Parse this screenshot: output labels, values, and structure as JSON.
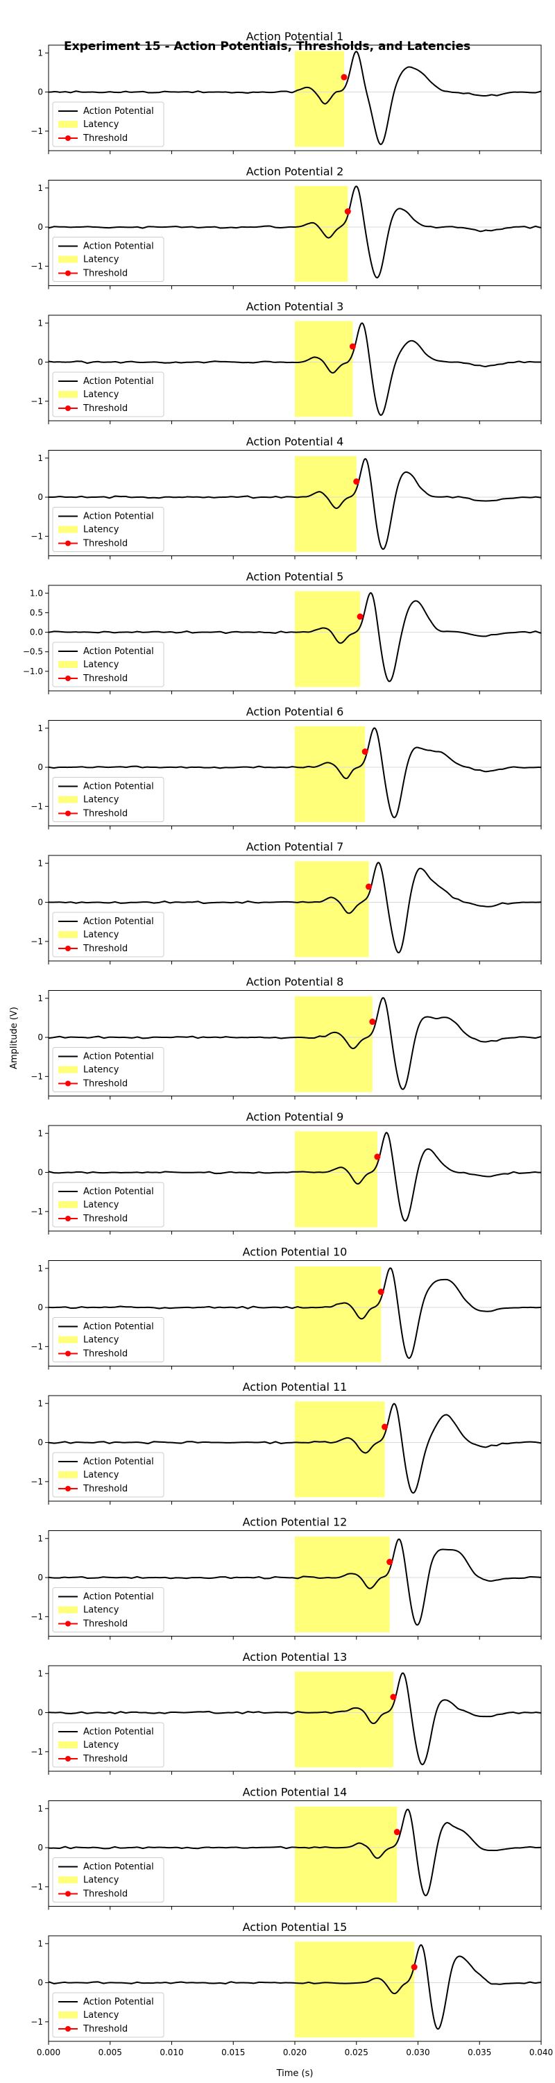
{
  "figure": {
    "suptitle": "Experiment 15 - Action Potentials, Thresholds, and Latencies",
    "xlabel": "Time (s)",
    "ylabel": "Amplitude (V)"
  },
  "legend": {
    "action_potential": "Action Potential",
    "latency": "Latency",
    "threshold": "Threshold"
  },
  "colors": {
    "signal": "#000000",
    "latency_fill": "#ffff7a",
    "threshold_marker": "#ff0000"
  },
  "chart_data": {
    "type": "line",
    "layout": "15 vertically stacked subplots sharing the x axis",
    "x_range": [
      0.0,
      0.04
    ],
    "x_ticks": [
      "0.000",
      "0.005",
      "0.010",
      "0.015",
      "0.020",
      "0.025",
      "0.030",
      "0.035",
      "0.040"
    ],
    "y_range": [
      -1.5,
      1.2
    ],
    "y_ticks_default": [
      "1",
      "0",
      "−1"
    ],
    "y_ticks_subplot_5": [
      "1.0",
      "0.5",
      "0.0",
      "−0.5",
      "−1.0"
    ],
    "latency_start": 0.02,
    "subplots": [
      {
        "title": "Action Potential 1",
        "latency_end": 0.024,
        "threshold": [
          0.024,
          0.38
        ],
        "peak": [
          0.025,
          1.0
        ],
        "trough": [
          0.027,
          -1.35
        ],
        "after": [
          [
            0.029,
            0.5
          ],
          [
            0.0303,
            0.35
          ]
        ]
      },
      {
        "title": "Action Potential 2",
        "latency_end": 0.0243,
        "threshold": [
          0.0243,
          0.4
        ],
        "peak": [
          0.025,
          1.0
        ],
        "trough": [
          0.0267,
          -1.35
        ],
        "after": [
          [
            0.0285,
            0.5
          ]
        ]
      },
      {
        "title": "Action Potential 3",
        "latency_end": 0.0247,
        "threshold": [
          0.0247,
          0.4
        ],
        "peak": [
          0.0255,
          1.0
        ],
        "trough": [
          0.027,
          -1.35
        ],
        "after": [
          [
            0.0295,
            0.55
          ]
        ]
      },
      {
        "title": "Action Potential 4",
        "latency_end": 0.025,
        "threshold": [
          0.025,
          0.4
        ],
        "peak": [
          0.0258,
          1.0
        ],
        "trough": [
          0.0272,
          -1.4
        ],
        "after": [
          [
            0.029,
            0.65
          ]
        ]
      },
      {
        "title": "Action Potential 5",
        "latency_end": 0.0253,
        "threshold": [
          0.0253,
          0.4
        ],
        "peak": [
          0.0262,
          1.0
        ],
        "trough": [
          0.0277,
          -1.3
        ],
        "after": [
          [
            0.0298,
            0.8
          ]
        ]
      },
      {
        "title": "Action Potential 6",
        "latency_end": 0.0257,
        "threshold": [
          0.0257,
          0.4
        ],
        "peak": [
          0.0265,
          1.0
        ],
        "trough": [
          0.0281,
          -1.35
        ],
        "after": [
          [
            0.0298,
            0.5
          ],
          [
            0.0318,
            0.35
          ]
        ]
      },
      {
        "title": "Action Potential 7",
        "latency_end": 0.026,
        "threshold": [
          0.026,
          0.4
        ],
        "peak": [
          0.0268,
          1.0
        ],
        "trough": [
          0.0285,
          -1.45
        ],
        "after": [
          [
            0.03,
            0.85
          ],
          [
            0.0318,
            0.3
          ]
        ]
      },
      {
        "title": "Action Potential 8",
        "latency_end": 0.0263,
        "threshold": [
          0.0263,
          0.4
        ],
        "peak": [
          0.0272,
          1.0
        ],
        "trough": [
          0.0288,
          -1.4
        ],
        "after": [
          [
            0.0305,
            0.5
          ],
          [
            0.0325,
            0.45
          ]
        ]
      },
      {
        "title": "Action Potential 9",
        "latency_end": 0.0267,
        "threshold": [
          0.0267,
          0.4
        ],
        "peak": [
          0.0275,
          1.0
        ],
        "trough": [
          0.029,
          -1.3
        ],
        "after": [
          [
            0.0308,
            0.6
          ]
        ]
      },
      {
        "title": "Action Potential 10",
        "latency_end": 0.027,
        "threshold": [
          0.027,
          0.4
        ],
        "peak": [
          0.0278,
          1.0
        ],
        "trough": [
          0.0293,
          -1.35
        ],
        "after": [
          [
            0.0312,
            0.5
          ],
          [
            0.0327,
            0.55
          ]
        ]
      },
      {
        "title": "Action Potential 11",
        "latency_end": 0.0273,
        "threshold": [
          0.0273,
          0.4
        ],
        "peak": [
          0.0281,
          1.0
        ],
        "trough": [
          0.0296,
          -1.3
        ],
        "after": [
          [
            0.0323,
            0.7
          ]
        ]
      },
      {
        "title": "Action Potential 12",
        "latency_end": 0.0277,
        "threshold": [
          0.0277,
          0.4
        ],
        "peak": [
          0.0285,
          1.0
        ],
        "trough": [
          0.03,
          -1.35
        ],
        "after": [
          [
            0.0315,
            0.65
          ],
          [
            0.0333,
            0.6
          ]
        ]
      },
      {
        "title": "Action Potential 13",
        "latency_end": 0.028,
        "threshold": [
          0.028,
          0.4
        ],
        "peak": [
          0.0288,
          1.0
        ],
        "trough": [
          0.0304,
          -1.4
        ],
        "after": [
          [
            0.032,
            0.35
          ]
        ]
      },
      {
        "title": "Action Potential 14",
        "latency_end": 0.0283,
        "threshold": [
          0.0283,
          0.4
        ],
        "peak": [
          0.0292,
          1.0
        ],
        "trough": [
          0.0307,
          -1.4
        ],
        "after": [
          [
            0.032,
            0.6
          ],
          [
            0.0337,
            0.35
          ]
        ]
      },
      {
        "title": "Action Potential 15",
        "latency_end": 0.0297,
        "threshold": [
          0.0297,
          0.4
        ],
        "peak": [
          0.0303,
          1.0
        ],
        "trough": [
          0.0317,
          -1.4
        ],
        "after": [
          [
            0.033,
            0.65
          ],
          [
            0.0345,
            0.3
          ]
        ]
      }
    ]
  }
}
